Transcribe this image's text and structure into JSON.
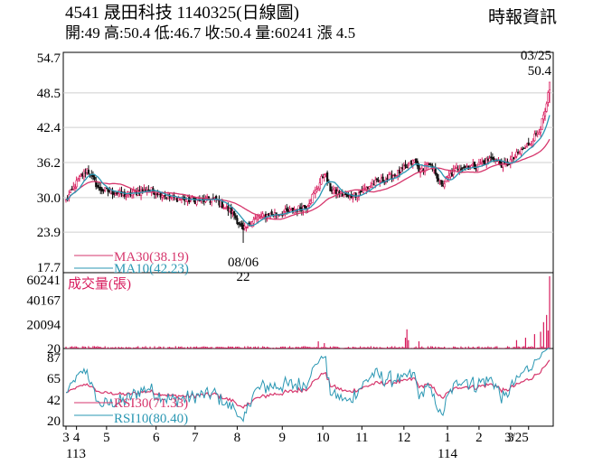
{
  "header": {
    "code": "4541",
    "name": "晟田科技",
    "date_label": "1140325(日線圖)",
    "open_label": "開:49",
    "high_label": "高:50.4",
    "low_label": "低:46.7",
    "close_label": "收:50.4",
    "volume_label": "量:60241",
    "change_label": "漲 4.5",
    "source": "時報資訊"
  },
  "chart_data": [
    {
      "type": "candlestick",
      "panel": "price",
      "y_ticks": [
        "54.7",
        "48.5",
        "42.4",
        "36.2",
        "30.0",
        "23.9",
        "17.7"
      ],
      "ylim": [
        17.7,
        54.7
      ],
      "grid": true,
      "x_tick_labels": [
        "3",
        "4",
        "5",
        "6",
        "7",
        "8",
        "9",
        "10",
        "11",
        "12",
        "1",
        "2",
        "3",
        "3/25"
      ],
      "x_year_labels": [
        "113",
        "114"
      ],
      "legend": [
        {
          "name": "MA30",
          "value": "MA30(38.19)",
          "color": "#d6366c"
        },
        {
          "name": "MA10",
          "value": "MA10(42.23)",
          "color": "#2a97b3"
        }
      ],
      "annotations": {
        "high": {
          "date": "03/25",
          "value": "50.4"
        },
        "low": {
          "date": "08/06",
          "value": "22"
        }
      },
      "close_keypoints": [
        [
          0,
          29.5
        ],
        [
          8,
          33
        ],
        [
          14,
          35
        ],
        [
          22,
          31.5
        ],
        [
          40,
          30.5
        ],
        [
          55,
          31.5
        ],
        [
          70,
          30
        ],
        [
          85,
          29.5
        ],
        [
          100,
          29.6
        ],
        [
          112,
          27
        ],
        [
          118,
          24
        ],
        [
          124,
          26
        ],
        [
          135,
          27
        ],
        [
          148,
          27.5
        ],
        [
          160,
          28.5
        ],
        [
          168,
          32
        ],
        [
          172,
          34.5
        ],
        [
          176,
          31.5
        ],
        [
          188,
          30
        ],
        [
          196,
          31
        ],
        [
          205,
          32.5
        ],
        [
          215,
          33.5
        ],
        [
          225,
          35
        ],
        [
          232,
          36.5
        ],
        [
          236,
          34.5
        ],
        [
          240,
          36
        ],
        [
          246,
          34.5
        ],
        [
          250,
          32
        ],
        [
          256,
          34
        ],
        [
          262,
          35.5
        ],
        [
          272,
          35.5
        ],
        [
          284,
          37
        ],
        [
          292,
          35.5
        ],
        [
          300,
          37.5
        ],
        [
          310,
          40
        ],
        [
          316,
          42.5
        ],
        [
          320,
          46
        ],
        [
          322,
          50.4
        ]
      ],
      "ma10_last": 42.23,
      "ma30_last": 38.19
    },
    {
      "type": "bar",
      "panel": "volume",
      "title": "成交量(張)",
      "y_ticks": [
        "60241",
        "40167",
        "20094",
        "20"
      ],
      "ylim": [
        20,
        60241
      ],
      "spikes": [
        {
          "index": 168,
          "value": 6000
        },
        {
          "index": 172,
          "value": 4500
        },
        {
          "index": 226,
          "value": 9000
        },
        {
          "index": 227,
          "value": 16000
        },
        {
          "index": 228,
          "value": 7000
        },
        {
          "index": 235,
          "value": 6000
        },
        {
          "index": 300,
          "value": 7000
        },
        {
          "index": 306,
          "value": 9000
        },
        {
          "index": 312,
          "value": 12000
        },
        {
          "index": 316,
          "value": 14000
        },
        {
          "index": 318,
          "value": 22000
        },
        {
          "index": 320,
          "value": 28000
        },
        {
          "index": 321,
          "value": 15000
        },
        {
          "index": 322,
          "value": 60241
        }
      ]
    },
    {
      "type": "line",
      "panel": "rsi",
      "y_ticks": [
        "87",
        "65",
        "42",
        "20"
      ],
      "ylim": [
        20,
        87
      ],
      "legend": [
        {
          "name": "RSI30",
          "value": "RSI30(71.33)",
          "color": "#d6366c"
        },
        {
          "name": "RSI10",
          "value": "RSI10(80.40)",
          "color": "#2a97b3"
        }
      ],
      "rsi30_last": 71.33,
      "rsi10_last": 80.4
    }
  ]
}
